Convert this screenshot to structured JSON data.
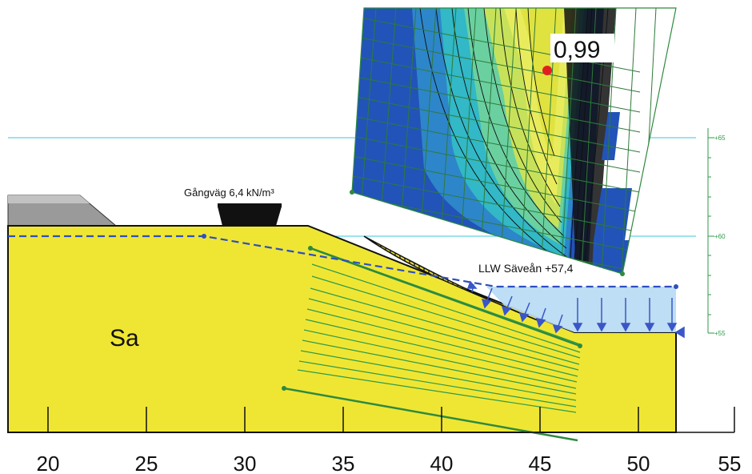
{
  "soil_label": "Sa",
  "fos_value": "0,99",
  "load_label": "Gångväg 6,4 kN/m³",
  "water_label": "LLW Säveån +57,4",
  "x_axis": {
    "ticks": [
      "20",
      "25",
      "30",
      "35",
      "40",
      "45",
      "50",
      "55"
    ]
  },
  "elev_scale": {
    "labels": [
      "+65",
      "+60",
      "+55"
    ]
  },
  "colors": {
    "soil": "#efe634",
    "water": "#b9dcf3",
    "grid": "#2e9a4a",
    "phreatic": "#2d4fbf",
    "road": "#9e9e9e",
    "contour_low": "#1f4fb0",
    "contour_mid": "#2ab6c8",
    "contour_high": "#d8e85a",
    "critical_point": "#e02020"
  }
}
